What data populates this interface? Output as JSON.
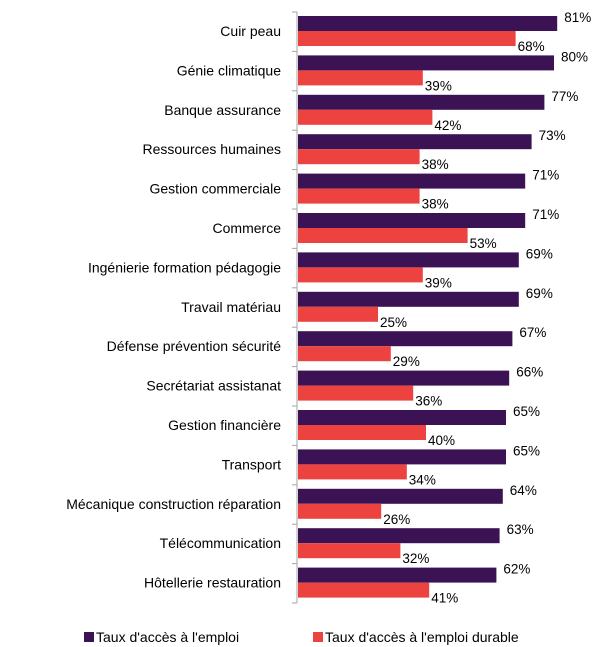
{
  "chart_data": {
    "type": "bar",
    "orientation": "horizontal",
    "categories": [
      "Cuir peau",
      "Génie climatique",
      "Banque assurance",
      "Ressources humaines",
      "Gestion commerciale",
      "Commerce",
      "Ingénierie formation pédagogie",
      "Travail matériau",
      "Défense prévention sécurité",
      "Secrétariat assistanat",
      "Gestion financière",
      "Transport",
      "Mécanique construction réparation",
      "Télécommunication",
      "Hôtellerie restauration"
    ],
    "series": [
      {
        "name": "Taux d'accès à l'emploi",
        "color": "#3b1355",
        "values": [
          81,
          80,
          77,
          73,
          71,
          71,
          69,
          69,
          67,
          66,
          65,
          65,
          64,
          63,
          62
        ]
      },
      {
        "name": "Taux d'accès à l'emploi durable",
        "color": "#ed4340",
        "values": [
          68,
          39,
          42,
          38,
          38,
          53,
          39,
          25,
          29,
          36,
          40,
          34,
          26,
          32,
          41
        ]
      }
    ],
    "value_suffix": "%",
    "xlim": [
      0,
      100
    ],
    "grid": false,
    "legend": "bottom"
  }
}
